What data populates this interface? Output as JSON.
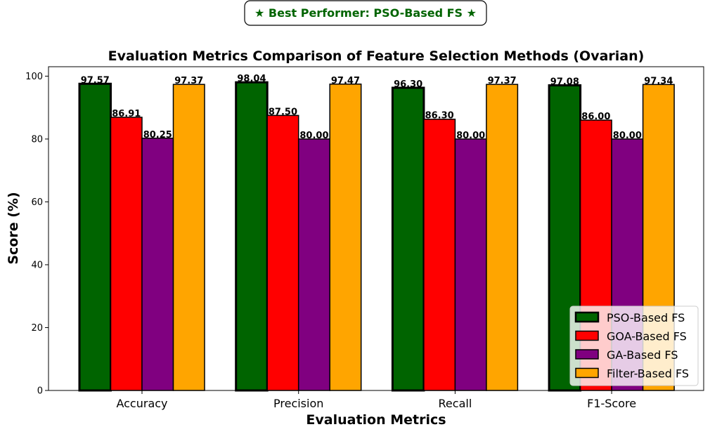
{
  "badge": {
    "text": "★ Best Performer: PSO-Based FS ★"
  },
  "chart_data": {
    "type": "bar",
    "title": "Evaluation Metrics Comparison of Feature Selection Methods (Ovarian)",
    "xlabel": "Evaluation Metrics",
    "ylabel": "Score (%)",
    "ylim": [
      0,
      103
    ],
    "yticks": [
      0,
      20,
      40,
      60,
      80,
      100
    ],
    "grid": false,
    "legend_position": "bottom-right",
    "categories": [
      "Accuracy",
      "Precision",
      "Recall",
      "F1-Score"
    ],
    "series": [
      {
        "name": "PSO-Based FS",
        "color": "#006400",
        "highlight": true,
        "values": [
          97.57,
          98.04,
          96.3,
          97.08
        ],
        "labels": [
          "97.57",
          "98.04",
          "96.30",
          "97.08"
        ]
      },
      {
        "name": "GOA-Based FS",
        "color": "#ff0000",
        "highlight": false,
        "values": [
          86.91,
          87.5,
          86.3,
          86.0
        ],
        "labels": [
          "86.91",
          "87.50",
          "86.30",
          "86.00"
        ]
      },
      {
        "name": "GA-Based FS",
        "color": "#800080",
        "highlight": false,
        "values": [
          80.25,
          80.0,
          80.0,
          80.0
        ],
        "labels": [
          "80.25",
          "80.00",
          "80.00",
          "80.00"
        ]
      },
      {
        "name": "Filter-Based FS",
        "color": "#ffa500",
        "highlight": false,
        "values": [
          97.37,
          97.47,
          97.37,
          97.34
        ],
        "labels": [
          "97.37",
          "97.47",
          "97.37",
          "97.34"
        ]
      }
    ]
  }
}
